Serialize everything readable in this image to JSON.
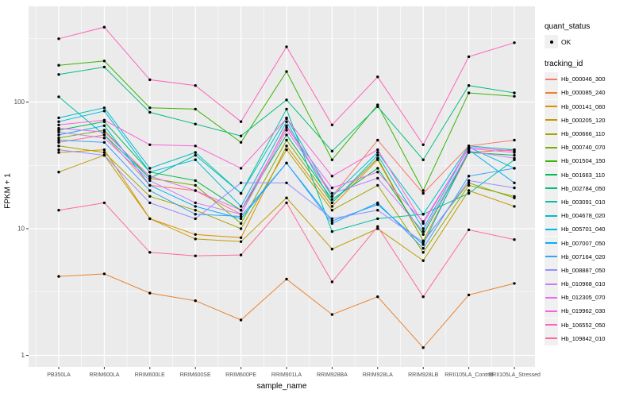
{
  "axes": {
    "ylabel": "FPKM + 1",
    "xlabel": "sample_name",
    "y_tick_labels": [
      "1",
      "10",
      "100"
    ]
  },
  "legend": {
    "quant_status_title": "quant_status",
    "quant_status_items": [
      {
        "label": "OK",
        "glyph": "black-point"
      }
    ],
    "tracking_title": "tracking_id"
  },
  "style_colors": {
    "panel_background": "#EBEBEB",
    "grid_major": "#FFFFFF",
    "grid_minor": "#F7F7F7",
    "axis_text": "#4D4D4D",
    "tick_mark": "#333333",
    "point": "#000000"
  },
  "chart_data": {
    "type": "line",
    "title": "",
    "xlabel": "sample_name",
    "ylabel": "FPKM + 1",
    "y_scale": "log10",
    "ylim": [
      1,
      450
    ],
    "y_tick_values": [
      1,
      10,
      100
    ],
    "y_minor_values": [
      3.162,
      31.62,
      316.2
    ],
    "grid": true,
    "legend_position": "right",
    "point_marker": "black dot (quant_status OK)",
    "categories": [
      "PB350LA",
      "RRIM600LA",
      "RRIM600LE",
      "RRIM600SE",
      "RRIM600PE",
      "RRIM901LA",
      "RRIM928BA",
      "RRIM928LA",
      "RRIM928LB",
      "RRII105LA_Control",
      "RRII105LA_Stressed"
    ],
    "series": [
      {
        "name": "Hb_000046_300",
        "color": "#F8766D",
        "values": [
          48,
          55,
          22,
          20,
          13,
          65,
          18,
          50,
          19,
          45,
          50
        ]
      },
      {
        "name": "Hb_000085_240",
        "color": "#EA8331",
        "values": [
          4.2,
          4.4,
          3.1,
          2.7,
          1.9,
          4.0,
          2.1,
          2.9,
          1.15,
          3.0,
          3.7
        ]
      },
      {
        "name": "Hb_000141_060",
        "color": "#D89000",
        "values": [
          40,
          42,
          12,
          9,
          8.5,
          45,
          15,
          35,
          8,
          40,
          42
        ]
      },
      {
        "name": "Hb_000205_120",
        "color": "#C09B00",
        "values": [
          28,
          38,
          12,
          8.3,
          7.9,
          17.5,
          6.9,
          10,
          5.6,
          20,
          15
        ]
      },
      {
        "name": "Hb_000666_110",
        "color": "#A3A500",
        "values": [
          45,
          40,
          18,
          14,
          10,
          42,
          14,
          22,
          6.5,
          22,
          18
        ]
      },
      {
        "name": "Hb_000740_070",
        "color": "#7CAE00",
        "values": [
          52,
          60,
          25,
          22,
          11,
          50,
          16,
          36,
          8,
          23,
          17.5
        ]
      },
      {
        "name": "Hb_001504_150",
        "color": "#39B600",
        "values": [
          195,
          211,
          90,
          88,
          48,
          174,
          35,
          95,
          20,
          118,
          111
        ]
      },
      {
        "name": "Hb_001663_110",
        "color": "#00BB4E",
        "values": [
          60,
          70,
          28,
          24,
          14,
          55,
          17,
          30,
          9,
          40,
          38
        ]
      },
      {
        "name": "Hb_002784_050",
        "color": "#00BF7D",
        "values": [
          165,
          189,
          83,
          67,
          54,
          104,
          41,
          92,
          35,
          135,
          118
        ]
      },
      {
        "name": "Hb_003091_010",
        "color": "#00C1A3",
        "values": [
          110,
          55,
          25,
          38,
          19,
          88,
          9.5,
          12,
          13,
          19,
          35
        ]
      },
      {
        "name": "Hb_004678_020",
        "color": "#00BFC4",
        "values": [
          75,
          90,
          30,
          40,
          19,
          75,
          18,
          40,
          13,
          45,
          42
        ]
      },
      {
        "name": "Hb_005701_040",
        "color": "#00BAE0",
        "values": [
          70,
          85,
          28,
          35,
          15,
          70,
          16,
          38,
          10,
          44,
          30
        ]
      },
      {
        "name": "Hb_007007_050",
        "color": "#00B0F6",
        "values": [
          55,
          65,
          22,
          15,
          12,
          33,
          11.5,
          15.5,
          7.5,
          42,
          23
        ]
      },
      {
        "name": "Hb_007164_020",
        "color": "#35A2FF",
        "values": [
          50,
          48,
          20,
          13,
          12.5,
          33,
          11,
          16,
          7,
          26,
          30
        ]
      },
      {
        "name": "Hb_008887_050",
        "color": "#9590FF",
        "values": [
          42,
          38,
          16,
          12,
          23,
          23,
          12,
          14,
          7.8,
          24,
          21
        ]
      },
      {
        "name": "Hb_010968_010",
        "color": "#C77CFF",
        "values": [
          58,
          52,
          24,
          16,
          13,
          60,
          19,
          25,
          9.5,
          41,
          36
        ]
      },
      {
        "name": "Hb_012305_070",
        "color": "#E76BF3",
        "values": [
          62,
          58,
          26,
          20,
          14,
          63,
          21,
          28,
          11.4,
          43,
          40
        ]
      },
      {
        "name": "Hb_019962_030",
        "color": "#FA62DB",
        "values": [
          66,
          72,
          46,
          45,
          30,
          74,
          26,
          42,
          11,
          44,
          41
        ]
      },
      {
        "name": "Hb_106552_050",
        "color": "#FF62BC",
        "values": [
          316,
          390,
          150,
          135,
          70,
          273,
          66,
          158,
          46,
          228,
          294
        ]
      },
      {
        "name": "Hb_109842_010",
        "color": "#FF6A98",
        "values": [
          14,
          16,
          6.5,
          6.1,
          6.2,
          16,
          3.8,
          10.4,
          2.9,
          9.8,
          8.2
        ]
      }
    ]
  }
}
